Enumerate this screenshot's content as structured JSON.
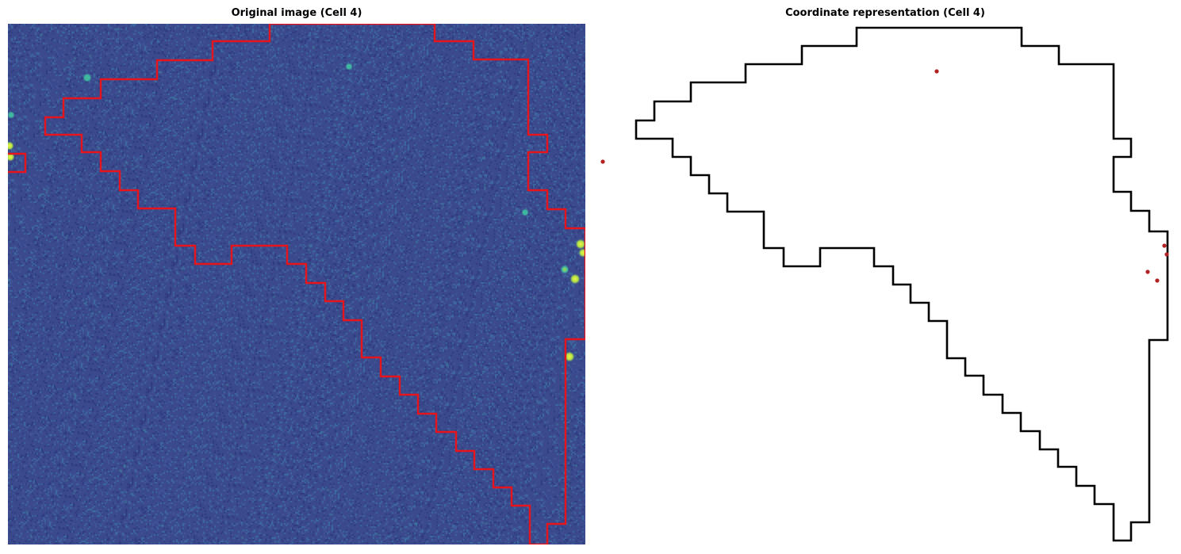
{
  "panels": {
    "left": {
      "title": "Original image (Cell 4)",
      "background_color": "#3b4a8c",
      "noise_colors": [
        "#2f3b80",
        "#3a4a8e",
        "#41579a",
        "#36478a",
        "#3d6aa0"
      ],
      "spot_colors": [
        "#f5f542",
        "#a8e04a",
        "#3fb8a0"
      ],
      "outline_color": "#e8141c"
    },
    "right": {
      "title": "Coordinate representation (Cell 4)",
      "outline_color": "#000000",
      "point_color": "#b22222"
    }
  }
}
